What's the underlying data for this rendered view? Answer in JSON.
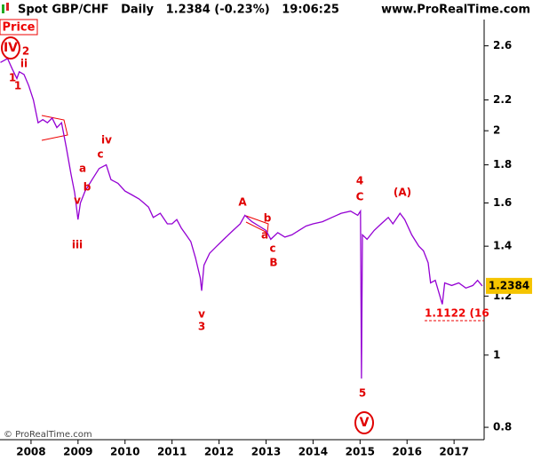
{
  "chart_data": {
    "type": "line",
    "header": "Spot GBP/CHF   Daily   1.2384 (-0.23%)   19:06:25",
    "site": "www.ProRealTime.com",
    "panel_label": "Price",
    "copyright": "© ProRealTime.com",
    "log_scale": true,
    "x": [
      2007.35,
      2007.5,
      2007.6,
      2007.7,
      2007.75,
      2007.85,
      2007.95,
      2008.05,
      2008.15,
      2008.25,
      2008.35,
      2008.45,
      2008.55,
      2008.65,
      2008.75,
      2008.85,
      2008.93,
      2009.0,
      2009.05,
      2009.15,
      2009.3,
      2009.45,
      2009.6,
      2009.7,
      2009.85,
      2010.0,
      2010.15,
      2010.3,
      2010.4,
      2010.5,
      2010.6,
      2010.75,
      2010.9,
      2011.0,
      2011.1,
      2011.2,
      2011.3,
      2011.4,
      2011.5,
      2011.6,
      2011.63,
      2011.68,
      2011.8,
      2011.95,
      2012.1,
      2012.3,
      2012.45,
      2012.55,
      2012.7,
      2012.85,
      2013.0,
      2013.1,
      2013.25,
      2013.4,
      2013.55,
      2013.7,
      2013.85,
      2014.0,
      2014.2,
      2014.4,
      2014.6,
      2014.8,
      2014.95,
      2015.01,
      2015.03,
      2015.05,
      2015.15,
      2015.3,
      2015.45,
      2015.6,
      2015.7,
      2015.85,
      2015.95,
      2016.1,
      2016.25,
      2016.35,
      2016.45,
      2016.5,
      2016.6,
      2016.75,
      2016.8,
      2016.95,
      2017.1,
      2017.25,
      2017.4,
      2017.5,
      2017.6
    ],
    "series": [
      {
        "name": "GBP/CHF",
        "color": "#9400d3",
        "values": [
          2.47,
          2.5,
          2.42,
          2.35,
          2.4,
          2.38,
          2.3,
          2.2,
          2.05,
          2.07,
          2.05,
          2.08,
          2.02,
          2.05,
          1.9,
          1.75,
          1.65,
          1.52,
          1.6,
          1.66,
          1.72,
          1.78,
          1.8,
          1.72,
          1.7,
          1.66,
          1.64,
          1.62,
          1.6,
          1.58,
          1.53,
          1.55,
          1.5,
          1.5,
          1.52,
          1.48,
          1.45,
          1.42,
          1.35,
          1.27,
          1.22,
          1.32,
          1.37,
          1.4,
          1.43,
          1.47,
          1.5,
          1.54,
          1.51,
          1.49,
          1.47,
          1.43,
          1.46,
          1.44,
          1.45,
          1.47,
          1.49,
          1.5,
          1.51,
          1.53,
          1.55,
          1.56,
          1.54,
          1.56,
          0.93,
          1.45,
          1.43,
          1.47,
          1.5,
          1.53,
          1.5,
          1.55,
          1.52,
          1.45,
          1.4,
          1.38,
          1.33,
          1.25,
          1.26,
          1.17,
          1.25,
          1.24,
          1.25,
          1.23,
          1.24,
          1.26,
          1.2384
        ]
      }
    ],
    "xlim": [
      2007.34,
      2017.64
    ],
    "xticks": [
      2008,
      2009,
      2010,
      2011,
      2012,
      2013,
      2014,
      2015,
      2016,
      2017
    ],
    "ylim": [
      0.77,
      2.82
    ],
    "yticks": [
      0.8,
      1,
      1.2,
      1.4,
      1.6,
      1.8,
      2,
      2.2,
      2.6
    ],
    "last_value": 1.2384,
    "level": 1.1122,
    "level_label": "1.1122 (16",
    "annotation_color": "#e00000",
    "annotations": [
      "IV",
      "2",
      "ii",
      "1",
      "1",
      "iv",
      "c",
      "a",
      "b",
      "v",
      "iii",
      "A",
      "b",
      "a",
      "c",
      "B",
      "v",
      "3",
      "4",
      "C",
      "(A)",
      "5",
      "V"
    ]
  }
}
